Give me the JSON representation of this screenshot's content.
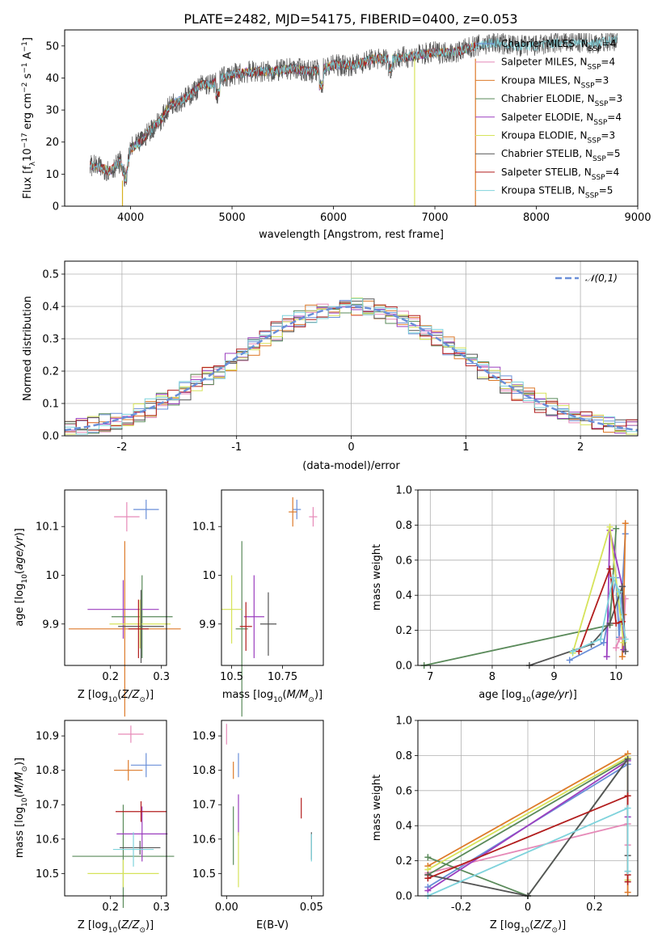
{
  "figure": {
    "title": "PLATE=2482, MJD=54175, FIBERID=0400, z=0.053"
  },
  "model_colors": [
    "#6a8fd8",
    "#e68ab8",
    "#dd7a2a",
    "#5a8a5a",
    "#9b3fbf",
    "#d6e35a",
    "#555555",
    "#b21d1d",
    "#7fd3dc"
  ],
  "chart_data": [
    {
      "id": "spectrum",
      "type": "line",
      "xlabel": "wavelength [Angstrom, rest frame]",
      "ylabel": "Flux [f_λ10^-17 erg cm^-2 s^-1 A^-1]",
      "xlim": [
        3350,
        9000
      ],
      "ylim": [
        0,
        55
      ],
      "xticks": [
        4000,
        5000,
        6000,
        7000,
        8000,
        9000
      ],
      "yticks": [
        0,
        10,
        20,
        30,
        40,
        50
      ],
      "grid": false,
      "legend_position": "top-right",
      "legend": [
        "Chabrier MILES, N_SSP=4",
        "Salpeter MILES, N_SSP=4",
        "Kroupa MILES, N_SSP=3",
        "Chabrier ELODIE, N_SSP=3",
        "Salpeter ELODIE, N_SSP=4",
        "Kroupa ELODIE, N_SSP=3",
        "Chabrier STELIB, N_SSP=5",
        "Salpeter STELIB, N_SSP=4",
        "Kroupa STELIB, N_SSP=5"
      ],
      "continuum_x": [
        3600,
        3700,
        3800,
        3900,
        3950,
        4000,
        4100,
        4200,
        4300,
        4400,
        4500,
        4600,
        4700,
        4800,
        4900,
        5000,
        5200,
        5400,
        5600,
        5800,
        6000,
        6200,
        6400,
        6600,
        6800,
        7000,
        7200,
        7400,
        7600,
        7800,
        8000,
        8200,
        8400,
        8600,
        8800
      ],
      "continuum_y": [
        13,
        12,
        11,
        14,
        8,
        18,
        20,
        24,
        27,
        32,
        33,
        35,
        38,
        38,
        40,
        41,
        42,
        42,
        43,
        42,
        44,
        44,
        46,
        46,
        47,
        48,
        48,
        50,
        51,
        50,
        50,
        51,
        51,
        51,
        52
      ]
    },
    {
      "id": "residuals",
      "type": "line",
      "xlabel": "(data-model)/error",
      "ylabel": "Normed distribution",
      "xlim": [
        -2.5,
        2.5
      ],
      "ylim": [
        0,
        0.54
      ],
      "xticks": [
        -2,
        -1,
        0,
        1,
        2
      ],
      "yticks": [
        0.0,
        0.1,
        0.2,
        0.3,
        0.4,
        0.5
      ],
      "grid": true,
      "legend_position": "top-right",
      "gaussian_label": "𝒩(0,1)"
    },
    {
      "id": "age_vs_Z",
      "type": "scatter",
      "xlabel": "Z [log10(Z/Z⊙)]",
      "ylabel": "age [log10(age/yr)]",
      "xlim": [
        0.11,
        0.31
      ],
      "ylim": [
        9.815,
        10.175
      ],
      "xticks": [
        0.2,
        0.3
      ],
      "yticks": [
        9.9,
        10.0,
        10.1
      ],
      "points": [
        {
          "x": 0.27,
          "y": 10.135,
          "xerr": 0.025,
          "yerr": 0.02
        },
        {
          "x": 0.232,
          "y": 10.12,
          "xerr": 0.025,
          "yerr": 0.03
        },
        {
          "x": 0.228,
          "y": 9.89,
          "xerr": 0.11,
          "yerr": 0.18
        },
        {
          "x": 0.262,
          "y": 9.915,
          "xerr": 0.06,
          "yerr": 0.085
        },
        {
          "x": 0.225,
          "y": 9.93,
          "xerr": 0.07,
          "yerr": 0.06
        },
        {
          "x": 0.258,
          "y": 9.9,
          "xerr": 0.06,
          "yerr": 0.05
        },
        {
          "x": 0.26,
          "y": 9.895,
          "xerr": 0.045,
          "yerr": 0.075
        },
        {
          "x": 0.255,
          "y": 9.89,
          "xerr": 0.02,
          "yerr": 0.06
        }
      ]
    },
    {
      "id": "age_vs_mass",
      "type": "scatter",
      "xlabel": "mass [log10(M/M⊙)]",
      "ylabel": "",
      "xlim": [
        10.45,
        10.95
      ],
      "ylim": [
        9.815,
        10.175
      ],
      "xticks": [
        10.5,
        10.75
      ],
      "yticks": [
        9.9,
        10.0,
        10.1
      ],
      "points": [
        {
          "x": 10.82,
          "y": 10.135,
          "xerr": 0.02,
          "yerr": 0.02
        },
        {
          "x": 10.9,
          "y": 10.12,
          "xerr": 0.02,
          "yerr": 0.02
        },
        {
          "x": 10.8,
          "y": 10.13,
          "xerr": 0.02,
          "yerr": 0.03
        },
        {
          "x": 10.55,
          "y": 9.89,
          "xerr": 0.03,
          "yerr": 0.18
        },
        {
          "x": 10.61,
          "y": 9.915,
          "xerr": 0.05,
          "yerr": 0.085
        },
        {
          "x": 10.5,
          "y": 9.93,
          "xerr": 0.05,
          "yerr": 0.07
        },
        {
          "x": 10.68,
          "y": 9.9,
          "xerr": 0.04,
          "yerr": 0.065
        },
        {
          "x": 10.57,
          "y": 9.895,
          "xerr": 0.03,
          "yerr": 0.05
        }
      ]
    },
    {
      "id": "weight_vs_age",
      "type": "line",
      "xlabel": "age [log10(age/yr)]",
      "ylabel": "mass weight",
      "xlim": [
        6.8,
        10.35
      ],
      "ylim": [
        0,
        1.0
      ],
      "xticks": [
        7,
        8,
        9,
        10
      ],
      "yticks": [
        0.0,
        0.2,
        0.4,
        0.6,
        0.8,
        1.0
      ],
      "grid": true,
      "series": [
        {
          "x": [
            9.25,
            9.8,
            10.0,
            10.05,
            10.15
          ],
          "y": [
            0.03,
            0.13,
            0.5,
            0.16,
            0.75
          ]
        },
        {
          "x": [
            10.0,
            10.05,
            10.12,
            10.15
          ],
          "y": [
            0.1,
            0.15,
            0.16,
            0.38
          ]
        },
        {
          "x": [
            10.15,
            10.12,
            10.1
          ],
          "y": [
            0.81,
            0.29,
            0.05
          ]
        },
        {
          "x": [
            6.9,
            9.9,
            10.0
          ],
          "y": [
            0.0,
            0.23,
            0.78
          ]
        },
        {
          "x": [
            9.85,
            9.9,
            10.1,
            10.12
          ],
          "y": [
            0.05,
            0.77,
            0.45,
            0.09
          ]
        },
        {
          "x": [
            9.3,
            9.9,
            10.12
          ],
          "y": [
            0.07,
            0.79,
            0.13
          ]
        },
        {
          "x": [
            8.6,
            9.6,
            9.9,
            10.1,
            10.15
          ],
          "y": [
            0.0,
            0.12,
            0.24,
            0.45,
            0.08
          ]
        },
        {
          "x": [
            9.4,
            9.9,
            10.0,
            10.1
          ],
          "y": [
            0.08,
            0.55,
            0.24,
            0.25
          ]
        },
        {
          "x": [
            9.3,
            9.75,
            9.95,
            10.05,
            10.15
          ],
          "y": [
            0.08,
            0.15,
            0.5,
            0.42,
            0.15
          ]
        }
      ]
    },
    {
      "id": "mass_vs_Z",
      "type": "scatter",
      "xlabel": "Z [log10(Z/Z⊙)]",
      "ylabel": "mass [log10(M/M⊙)]",
      "xlim": [
        0.11,
        0.31
      ],
      "ylim": [
        10.435,
        10.945
      ],
      "xticks": [
        0.2,
        0.3
      ],
      "yticks": [
        10.5,
        10.6,
        10.7,
        10.8,
        10.9
      ],
      "points": [
        {
          "x": 0.27,
          "y": 10.815,
          "xerr": 0.03,
          "yerr": 0.035
        },
        {
          "x": 0.24,
          "y": 10.905,
          "xerr": 0.025,
          "yerr": 0.025
        },
        {
          "x": 0.235,
          "y": 10.8,
          "xerr": 0.028,
          "yerr": 0.03
        },
        {
          "x": 0.225,
          "y": 10.55,
          "xerr": 0.1,
          "yerr": 0.15
        },
        {
          "x": 0.262,
          "y": 10.615,
          "xerr": 0.05,
          "yerr": 0.08
        },
        {
          "x": 0.225,
          "y": 10.5,
          "xerr": 0.07,
          "yerr": 0.04
        },
        {
          "x": 0.258,
          "y": 10.575,
          "xerr": 0.04,
          "yerr": 0.02
        },
        {
          "x": 0.26,
          "y": 10.68,
          "xerr": 0.05,
          "yerr": 0.03
        },
        {
          "x": 0.245,
          "y": 10.57,
          "xerr": 0.04,
          "yerr": 0.05
        }
      ]
    },
    {
      "id": "mass_vs_EBV",
      "type": "scatter",
      "xlabel": "E(B-V)",
      "ylabel": "",
      "xlim": [
        -0.003,
        0.057
      ],
      "ylim": [
        10.435,
        10.945
      ],
      "xticks": [
        0.0,
        0.05
      ],
      "xtick_labels": [
        "0.00",
        "0.05"
      ],
      "yticks": [
        10.5,
        10.6,
        10.7,
        10.8,
        10.9
      ],
      "points": [
        {
          "x": 0.007,
          "y": 10.815,
          "xerr": 0.0,
          "yerr": 0.035
        },
        {
          "x": 0.0,
          "y": 10.905,
          "xerr": 0.0,
          "yerr": 0.03
        },
        {
          "x": 0.004,
          "y": 10.8,
          "xerr": 0.0,
          "yerr": 0.025
        },
        {
          "x": 0.004,
          "y": 10.61,
          "xerr": 0.0,
          "yerr": 0.085
        },
        {
          "x": 0.007,
          "y": 10.67,
          "xerr": 0.0,
          "yerr": 0.06
        },
        {
          "x": 0.007,
          "y": 10.54,
          "xerr": 0.0,
          "yerr": 0.08
        },
        {
          "x": 0.05,
          "y": 10.58,
          "xerr": 0.0,
          "yerr": 0.04
        },
        {
          "x": 0.044,
          "y": 10.69,
          "xerr": 0.0,
          "yerr": 0.03
        },
        {
          "x": 0.05,
          "y": 10.575,
          "xerr": 0.0,
          "yerr": 0.04
        }
      ]
    },
    {
      "id": "weight_vs_Z",
      "type": "line",
      "xlabel": "Z [log10(Z/Z⊙)]",
      "ylabel": "mass weight",
      "xlim": [
        -0.33,
        0.33
      ],
      "ylim": [
        0,
        1.0
      ],
      "xticks": [
        -0.2,
        0.0,
        0.2
      ],
      "yticks": [
        0.0,
        0.2,
        0.4,
        0.6,
        0.8,
        1.0
      ],
      "grid": true,
      "series": [
        {
          "x": [
            -0.3,
            0.3,
            0.3
          ],
          "y": [
            0.05,
            0.75,
            0.14
          ]
        },
        {
          "x": [
            -0.3,
            0.3,
            0.3
          ],
          "y": [
            0.13,
            0.41,
            0.29
          ]
        },
        {
          "x": [
            -0.3,
            0.3,
            0.3
          ],
          "y": [
            0.17,
            0.81,
            0.02
          ]
        },
        {
          "x": [
            -0.3,
            0.0,
            0.3,
            -0.3
          ],
          "y": [
            0.22,
            0.0,
            0.78,
            0.12
          ]
        },
        {
          "x": [
            -0.3,
            0.3,
            0.3
          ],
          "y": [
            0.03,
            0.77,
            0.45
          ]
        },
        {
          "x": [
            -0.3,
            0.3,
            0.3
          ],
          "y": [
            0.15,
            0.79,
            0.09
          ]
        },
        {
          "x": [
            -0.3,
            0.0,
            0.3,
            0.3
          ],
          "y": [
            0.12,
            0.0,
            0.78,
            0.23
          ]
        },
        {
          "x": [
            -0.3,
            0.3,
            0.3,
            0.3
          ],
          "y": [
            0.1,
            0.57,
            0.08,
            0.12
          ]
        },
        {
          "x": [
            -0.3,
            0.3,
            0.3
          ],
          "y": [
            0.0,
            0.5,
            0.14
          ]
        }
      ]
    }
  ]
}
